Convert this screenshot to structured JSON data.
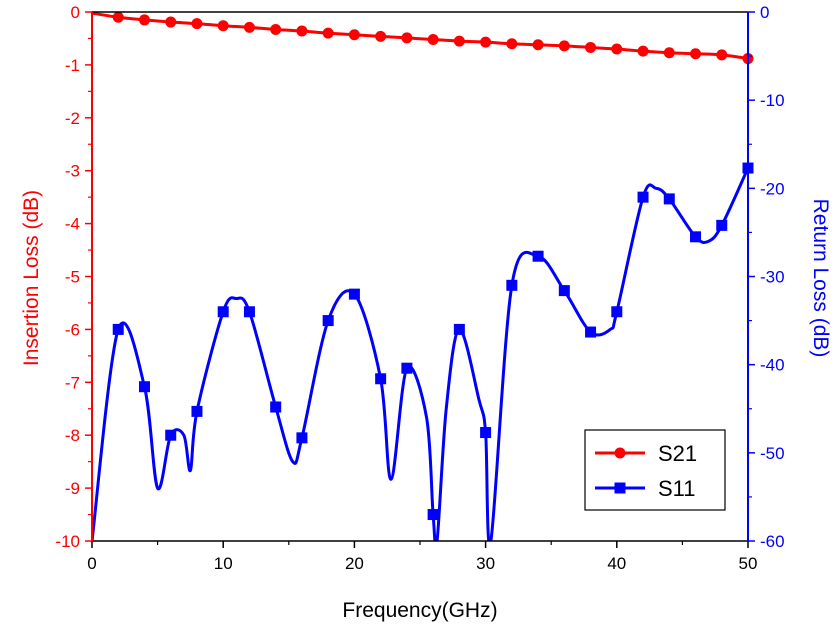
{
  "chart_data": {
    "type": "line",
    "xlabel": "Frequency(GHz)",
    "ylabel_left": "Insertion Loss (dB)",
    "ylabel_right": "Return Loss (dB)",
    "xlim": [
      0,
      50
    ],
    "ylim_left": [
      -10,
      0
    ],
    "ylim_right": [
      -60,
      0
    ],
    "x_ticks": [
      "0",
      "10",
      "20",
      "30",
      "40",
      "50"
    ],
    "y_left_ticks": [
      "0",
      "-1",
      "-2",
      "-3",
      "-4",
      "-5",
      "-6",
      "-7",
      "-8",
      "-9",
      "-10"
    ],
    "y_right_ticks": [
      "0",
      "-10",
      "-20",
      "-30",
      "-40",
      "-50",
      "-60"
    ],
    "grid": false,
    "legend_position": "bottom-right",
    "colors": {
      "left_axis": "#ff0000",
      "right_axis": "#0000ff"
    },
    "series": [
      {
        "name": "S21",
        "axis": "left",
        "color": "#ff0000",
        "marker": "circle",
        "x": [
          0,
          2,
          4,
          6,
          8,
          10,
          12,
          14,
          16,
          18,
          20,
          22,
          24,
          26,
          28,
          30,
          32,
          34,
          36,
          38,
          40,
          42,
          44,
          46,
          48,
          50
        ],
        "y": [
          -0.02,
          -0.1,
          -0.15,
          -0.19,
          -0.22,
          -0.26,
          -0.29,
          -0.33,
          -0.36,
          -0.4,
          -0.43,
          -0.46,
          -0.49,
          -0.52,
          -0.55,
          -0.57,
          -0.6,
          -0.62,
          -0.64,
          -0.67,
          -0.7,
          -0.74,
          -0.77,
          -0.79,
          -0.81,
          -0.88
        ]
      },
      {
        "name": "S11",
        "axis": "right",
        "color": "#0000ff",
        "marker": "square",
        "x": [
          0,
          2,
          4,
          5,
          6,
          7,
          7.5,
          8,
          10,
          11,
          12,
          14,
          15.3,
          16,
          18,
          20,
          22,
          22.8,
          24,
          25.5,
          26,
          26.3,
          27,
          28,
          29.5,
          30,
          30.4,
          32,
          34,
          36,
          38,
          39.5,
          40,
          42,
          43,
          44,
          46,
          47,
          48,
          50
        ],
        "y": [
          -60,
          -36,
          -42.5,
          -54,
          -48,
          -48,
          -52,
          -45.3,
          -34,
          -32.5,
          -34,
          -44.8,
          -51,
          -48.3,
          -35,
          -32,
          -41.6,
          -53,
          -40.4,
          -46,
          -57,
          -60,
          -45,
          -36,
          -44,
          -47.7,
          -60,
          -31,
          -27.7,
          -31.6,
          -36.3,
          -36,
          -34,
          -21,
          -20,
          -21.2,
          -25.5,
          -26,
          -24.2,
          -17.7
        ]
      }
    ]
  }
}
